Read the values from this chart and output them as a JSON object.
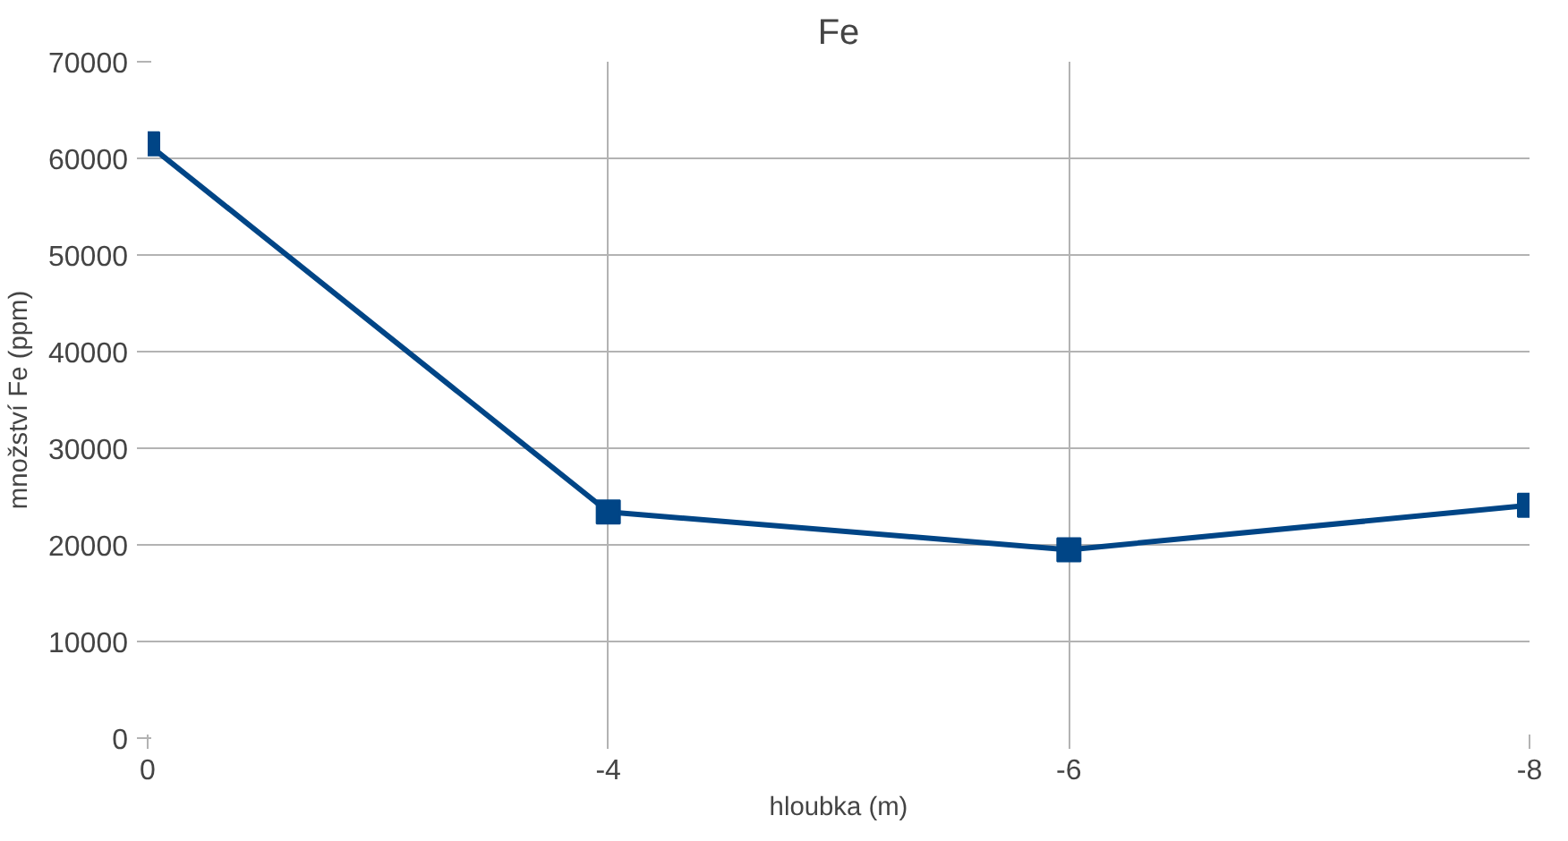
{
  "chart_data": {
    "type": "line",
    "title": "Fe",
    "xlabel": "hloubka (m)",
    "ylabel": "množství Fe (ppm)",
    "categories": [
      "0",
      "-4",
      "-6",
      "-8"
    ],
    "series": [
      {
        "color": "#004586",
        "values": [
          61500,
          23400,
          19500,
          24100
        ]
      }
    ],
    "ylim": [
      0,
      70000
    ],
    "yticks": [
      0,
      10000,
      20000,
      30000,
      40000,
      50000,
      60000,
      70000
    ],
    "grid": true,
    "marker": "square",
    "line_style": "solid"
  }
}
